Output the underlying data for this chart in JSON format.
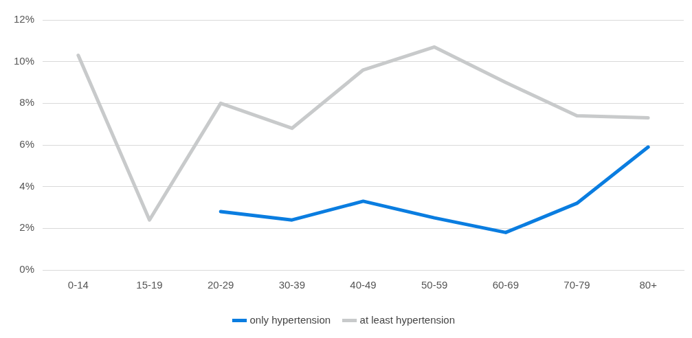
{
  "chart_data": {
    "type": "line",
    "categories": [
      "0-14",
      "15-19",
      "20-29",
      "30-39",
      "40-49",
      "50-59",
      "60-69",
      "70-79",
      "80+"
    ],
    "series": [
      {
        "name": "only hypertension",
        "color": "#0a7de0",
        "values": [
          null,
          null,
          2.8,
          2.4,
          3.3,
          2.5,
          1.8,
          3.2,
          5.9
        ]
      },
      {
        "name": "at least hypertension",
        "color": "#c8cacb",
        "values": [
          10.3,
          2.4,
          8.0,
          6.8,
          9.6,
          10.7,
          9.0,
          7.4,
          7.3
        ]
      }
    ],
    "ylim": [
      0,
      12
    ],
    "yticks": [
      {
        "value": 0,
        "label": "0%"
      },
      {
        "value": 2,
        "label": "2%"
      },
      {
        "value": 4,
        "label": "4%"
      },
      {
        "value": 6,
        "label": "6%"
      },
      {
        "value": 8,
        "label": "8%"
      },
      {
        "value": 10,
        "label": "10%"
      },
      {
        "value": 12,
        "label": "12%"
      }
    ],
    "grid": "y",
    "legend": "bottom",
    "marker": "none",
    "line_style": "solid"
  }
}
